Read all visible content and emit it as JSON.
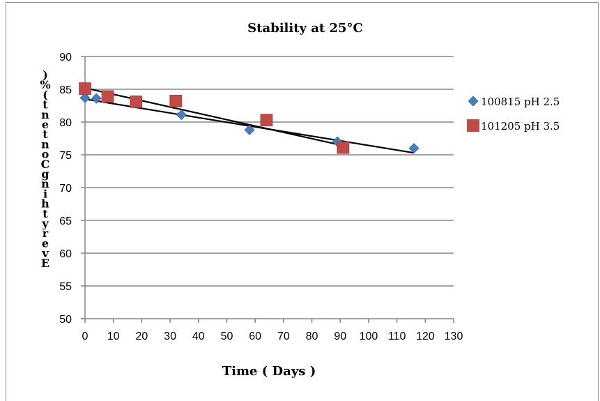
{
  "chart_data": {
    "type": "scatter",
    "title": "Stability at 25°C",
    "xlabel": "Time ( Days )",
    "ylabel": "Everything Content (%)",
    "xlim": [
      0,
      130
    ],
    "ylim": [
      50,
      90
    ],
    "xticks": [
      0,
      10,
      20,
      30,
      40,
      50,
      60,
      70,
      80,
      90,
      100,
      110,
      120,
      130
    ],
    "yticks": [
      50,
      55,
      60,
      65,
      70,
      75,
      80,
      85,
      90
    ],
    "grid": "horizontal",
    "legend": "right",
    "series": [
      {
        "name": "100815 pH 2.5",
        "marker": "diamond",
        "color": "#4a7ebb",
        "points": [
          [
            0,
            83.7
          ],
          [
            4,
            83.6
          ],
          [
            34,
            81.1
          ],
          [
            58,
            78.8
          ],
          [
            89,
            77.0
          ],
          [
            116,
            76.0
          ]
        ],
        "trendline": [
          [
            0,
            83.5
          ],
          [
            116,
            75.3
          ]
        ]
      },
      {
        "name": "101205 pH 3.5",
        "marker": "square",
        "color": "#be4b48",
        "points": [
          [
            0,
            85.1
          ],
          [
            8,
            83.9
          ],
          [
            18,
            83.1
          ],
          [
            32,
            83.2
          ],
          [
            64,
            80.3
          ],
          [
            91,
            76.1
          ]
        ],
        "trendline": [
          [
            0,
            85.2
          ],
          [
            91,
            76.4
          ]
        ]
      }
    ]
  }
}
